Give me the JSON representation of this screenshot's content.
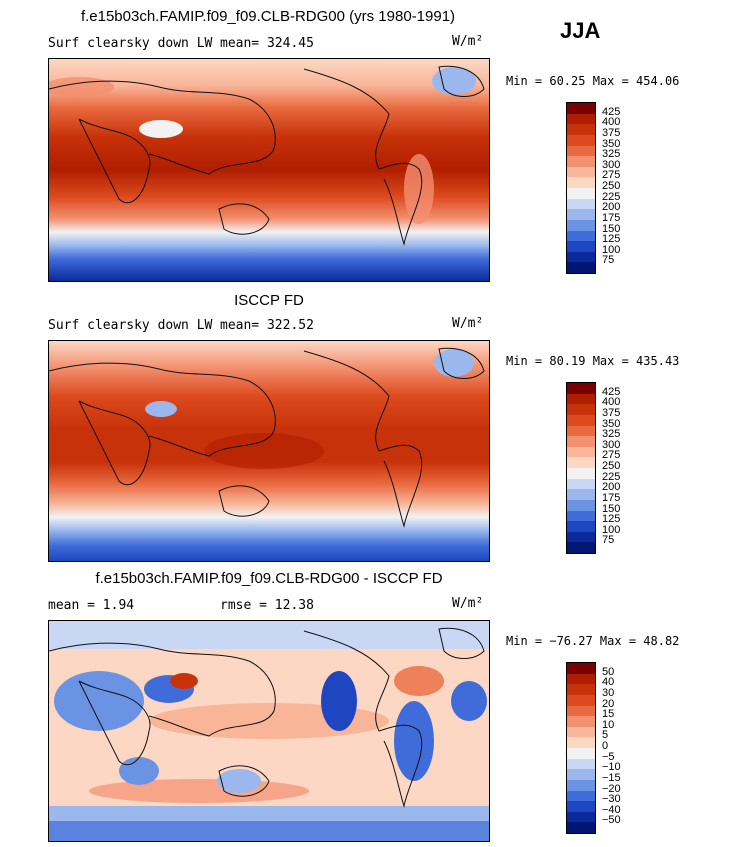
{
  "season": "JJA",
  "panels": [
    {
      "title": "f.e15b03ch.FAMIP.f09_f09.CLB-RDG00 (yrs 1980-1991)",
      "left_label": "Surf clearsky down LW",
      "mid_label": "mean= 324.45",
      "units": "W/m²",
      "minmax": "Min =  60.25 Max = 454.06",
      "levels": [
        "425",
        "400",
        "375",
        "350",
        "325",
        "300",
        "275",
        "250",
        "225",
        "200",
        "175",
        "150",
        "125",
        "100",
        "75"
      ],
      "colors": [
        "#7a0000",
        "#b01e00",
        "#c8320a",
        "#dc4a1e",
        "#ea6a40",
        "#f39070",
        "#f8b598",
        "#fcd8c4",
        "#f2f2f2",
        "#c7d7f4",
        "#9ab8ee",
        "#6b93e4",
        "#3f6cd8",
        "#1d46c0",
        "#0a2a9c",
        "#011672"
      ]
    },
    {
      "title": "ISCCP FD",
      "left_label": "Surf clearsky down LW",
      "mid_label": "mean= 322.52",
      "units": "W/m²",
      "minmax": "Min =  80.19 Max = 435.43",
      "levels": [
        "425",
        "400",
        "375",
        "350",
        "325",
        "300",
        "275",
        "250",
        "225",
        "200",
        "175",
        "150",
        "125",
        "100",
        "75"
      ],
      "colors": [
        "#7a0000",
        "#b01e00",
        "#c8320a",
        "#dc4a1e",
        "#ea6a40",
        "#f39070",
        "#f8b598",
        "#fcd8c4",
        "#f2f2f2",
        "#c7d7f4",
        "#9ab8ee",
        "#6b93e4",
        "#3f6cd8",
        "#1d46c0",
        "#0a2a9c",
        "#011672"
      ]
    },
    {
      "title": "f.e15b03ch.FAMIP.f09_f09.CLB-RDG00 - ISCCP FD",
      "left_label": "mean =   1.94",
      "mid_label": "rmse =  12.38",
      "units": "W/m²",
      "minmax": "Min = −76.27 Max =  48.82",
      "levels": [
        "50",
        "40",
        "30",
        "20",
        "15",
        "10",
        "5",
        "0",
        "−5",
        "−10",
        "−15",
        "−20",
        "−30",
        "−40",
        "−50"
      ],
      "colors": [
        "#7a0000",
        "#b01e00",
        "#c8320a",
        "#dc4a1e",
        "#ea6a40",
        "#f39070",
        "#f8b598",
        "#fcd8c4",
        "#f2f2f2",
        "#c7d7f4",
        "#9ab8ee",
        "#6b93e4",
        "#3f6cd8",
        "#1d46c0",
        "#0a2a9c",
        "#011672"
      ]
    }
  ]
}
